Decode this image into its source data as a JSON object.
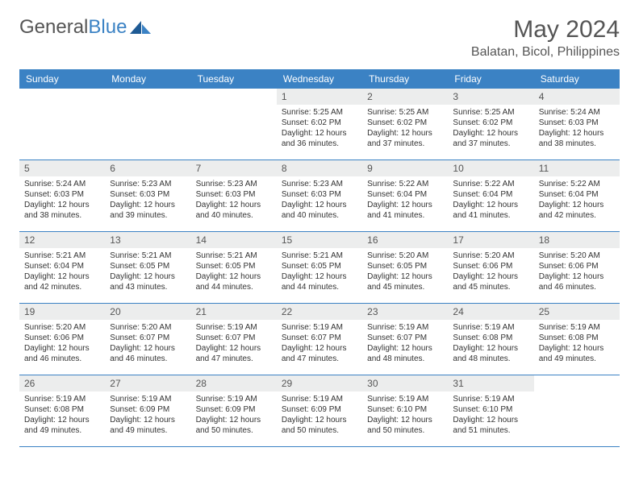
{
  "brand": {
    "part1": "General",
    "part2": "Blue"
  },
  "title": "May 2024",
  "location": "Balatan, Bicol, Philippines",
  "colors": {
    "header_bg": "#3b82c4",
    "daynum_bg": "#eceded",
    "text": "#555555",
    "border": "#3b82c4"
  },
  "daynames": [
    "Sunday",
    "Monday",
    "Tuesday",
    "Wednesday",
    "Thursday",
    "Friday",
    "Saturday"
  ],
  "weeks": [
    [
      null,
      null,
      null,
      {
        "n": "1",
        "sr": "5:25 AM",
        "ss": "6:02 PM",
        "dl": "12 hours and 36 minutes."
      },
      {
        "n": "2",
        "sr": "5:25 AM",
        "ss": "6:02 PM",
        "dl": "12 hours and 37 minutes."
      },
      {
        "n": "3",
        "sr": "5:25 AM",
        "ss": "6:02 PM",
        "dl": "12 hours and 37 minutes."
      },
      {
        "n": "4",
        "sr": "5:24 AM",
        "ss": "6:03 PM",
        "dl": "12 hours and 38 minutes."
      }
    ],
    [
      {
        "n": "5",
        "sr": "5:24 AM",
        "ss": "6:03 PM",
        "dl": "12 hours and 38 minutes."
      },
      {
        "n": "6",
        "sr": "5:23 AM",
        "ss": "6:03 PM",
        "dl": "12 hours and 39 minutes."
      },
      {
        "n": "7",
        "sr": "5:23 AM",
        "ss": "6:03 PM",
        "dl": "12 hours and 40 minutes."
      },
      {
        "n": "8",
        "sr": "5:23 AM",
        "ss": "6:03 PM",
        "dl": "12 hours and 40 minutes."
      },
      {
        "n": "9",
        "sr": "5:22 AM",
        "ss": "6:04 PM",
        "dl": "12 hours and 41 minutes."
      },
      {
        "n": "10",
        "sr": "5:22 AM",
        "ss": "6:04 PM",
        "dl": "12 hours and 41 minutes."
      },
      {
        "n": "11",
        "sr": "5:22 AM",
        "ss": "6:04 PM",
        "dl": "12 hours and 42 minutes."
      }
    ],
    [
      {
        "n": "12",
        "sr": "5:21 AM",
        "ss": "6:04 PM",
        "dl": "12 hours and 42 minutes."
      },
      {
        "n": "13",
        "sr": "5:21 AM",
        "ss": "6:05 PM",
        "dl": "12 hours and 43 minutes."
      },
      {
        "n": "14",
        "sr": "5:21 AM",
        "ss": "6:05 PM",
        "dl": "12 hours and 44 minutes."
      },
      {
        "n": "15",
        "sr": "5:21 AM",
        "ss": "6:05 PM",
        "dl": "12 hours and 44 minutes."
      },
      {
        "n": "16",
        "sr": "5:20 AM",
        "ss": "6:05 PM",
        "dl": "12 hours and 45 minutes."
      },
      {
        "n": "17",
        "sr": "5:20 AM",
        "ss": "6:06 PM",
        "dl": "12 hours and 45 minutes."
      },
      {
        "n": "18",
        "sr": "5:20 AM",
        "ss": "6:06 PM",
        "dl": "12 hours and 46 minutes."
      }
    ],
    [
      {
        "n": "19",
        "sr": "5:20 AM",
        "ss": "6:06 PM",
        "dl": "12 hours and 46 minutes."
      },
      {
        "n": "20",
        "sr": "5:20 AM",
        "ss": "6:07 PM",
        "dl": "12 hours and 46 minutes."
      },
      {
        "n": "21",
        "sr": "5:19 AM",
        "ss": "6:07 PM",
        "dl": "12 hours and 47 minutes."
      },
      {
        "n": "22",
        "sr": "5:19 AM",
        "ss": "6:07 PM",
        "dl": "12 hours and 47 minutes."
      },
      {
        "n": "23",
        "sr": "5:19 AM",
        "ss": "6:07 PM",
        "dl": "12 hours and 48 minutes."
      },
      {
        "n": "24",
        "sr": "5:19 AM",
        "ss": "6:08 PM",
        "dl": "12 hours and 48 minutes."
      },
      {
        "n": "25",
        "sr": "5:19 AM",
        "ss": "6:08 PM",
        "dl": "12 hours and 49 minutes."
      }
    ],
    [
      {
        "n": "26",
        "sr": "5:19 AM",
        "ss": "6:08 PM",
        "dl": "12 hours and 49 minutes."
      },
      {
        "n": "27",
        "sr": "5:19 AM",
        "ss": "6:09 PM",
        "dl": "12 hours and 49 minutes."
      },
      {
        "n": "28",
        "sr": "5:19 AM",
        "ss": "6:09 PM",
        "dl": "12 hours and 50 minutes."
      },
      {
        "n": "29",
        "sr": "5:19 AM",
        "ss": "6:09 PM",
        "dl": "12 hours and 50 minutes."
      },
      {
        "n": "30",
        "sr": "5:19 AM",
        "ss": "6:10 PM",
        "dl": "12 hours and 50 minutes."
      },
      {
        "n": "31",
        "sr": "5:19 AM",
        "ss": "6:10 PM",
        "dl": "12 hours and 51 minutes."
      },
      null
    ]
  ]
}
